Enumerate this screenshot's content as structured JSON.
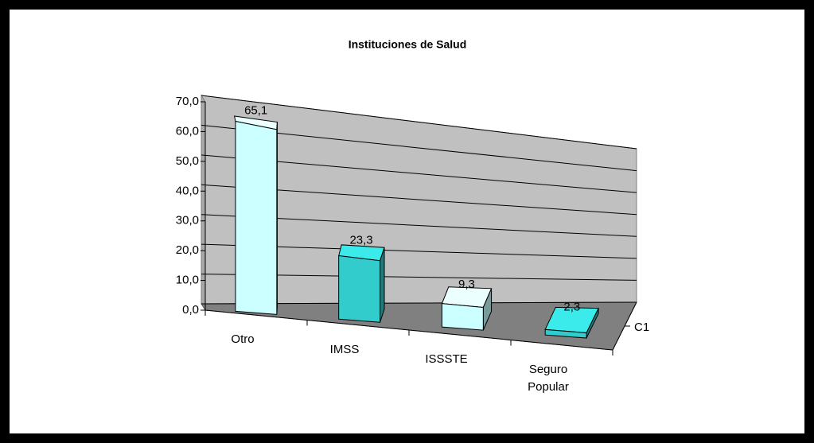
{
  "chart_data": {
    "type": "bar3d",
    "title": "Instituciones de Salud",
    "categories": [
      "Otro",
      "IMSS",
      "ISSSTE",
      "Seguro Popular"
    ],
    "series": [
      {
        "name": "C1",
        "colors": [
          "#ccffff",
          "#33cccc",
          "#ccffff",
          "#33cccc"
        ],
        "values": [
          65.1,
          23.3,
          9.3,
          2.3
        ],
        "value_labels": [
          "65,1",
          "23,3",
          "9,3",
          "2,3"
        ]
      }
    ],
    "ylim": [
      0,
      70
    ],
    "yticks": [
      {
        "value": 0,
        "label": "0,0"
      },
      {
        "value": 10,
        "label": "10,0"
      },
      {
        "value": 20,
        "label": "20,0"
      },
      {
        "value": 30,
        "label": "30,0"
      },
      {
        "value": 40,
        "label": "40,0"
      },
      {
        "value": 50,
        "label": "50,0"
      },
      {
        "value": 60,
        "label": "60,0"
      },
      {
        "value": 70,
        "label": "70,0"
      }
    ],
    "grid": true
  }
}
